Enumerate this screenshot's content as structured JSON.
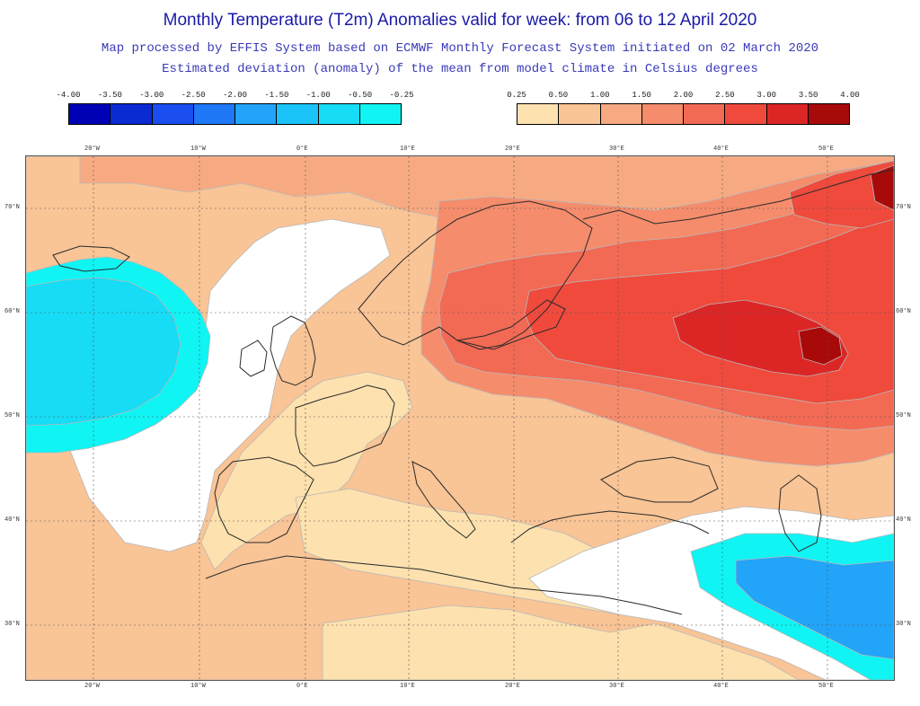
{
  "header": {
    "title": "Monthly Temperature (T2m) Anomalies valid for week: from 06 to 12 April 2020",
    "subtitle_1": "Map processed by EFFIS System based on ECMWF Monthly Forecast System initiated on 02 March 2020",
    "subtitle_2": "Estimated deviation (anomaly) of the mean from model climate in Celsius degrees"
  },
  "legend_negative": {
    "ticks": [
      "-4.00",
      "-3.50",
      "-3.00",
      "-2.50",
      "-2.00",
      "-1.50",
      "-1.00",
      "-0.50",
      "-0.25"
    ],
    "colors": [
      "#0000b4",
      "#0a2ad2",
      "#1a4ef0",
      "#1f78f6",
      "#22a4f8",
      "#1ac4f8",
      "#16dcf6",
      "#10f4f4"
    ]
  },
  "legend_positive": {
    "ticks": [
      "0.25",
      "0.50",
      "1.00",
      "1.50",
      "2.00",
      "2.50",
      "3.00",
      "3.50",
      "4.00"
    ],
    "colors": [
      "#fde1ae",
      "#f9c496",
      "#f7aa82",
      "#f58c6c",
      "#f26a54",
      "#ef4a3c",
      "#dc2626",
      "#a80a0a"
    ]
  },
  "map": {
    "lon_labels": [
      "20°W",
      "10°W",
      "0°E",
      "10°E",
      "20°E",
      "30°E",
      "40°E",
      "50°E"
    ],
    "lat_labels": [
      "70°N",
      "60°N",
      "50°N",
      "40°N",
      "30°N"
    ],
    "colors": {
      "white": "#ffffff",
      "pale": "#fde1ae",
      "light": "#f9c496",
      "mid": "#f7aa82",
      "orange": "#f58c6c",
      "red1": "#f26a54",
      "red2": "#ef4a3c",
      "red3": "#dc2626",
      "dark": "#a80a0a",
      "cyan": "#10f4f4",
      "cyan2": "#16dcf6",
      "blue": "#22a4f8",
      "coast": "#2a2a2a",
      "grid": "#555555",
      "contour": "#b8b8b8"
    }
  }
}
